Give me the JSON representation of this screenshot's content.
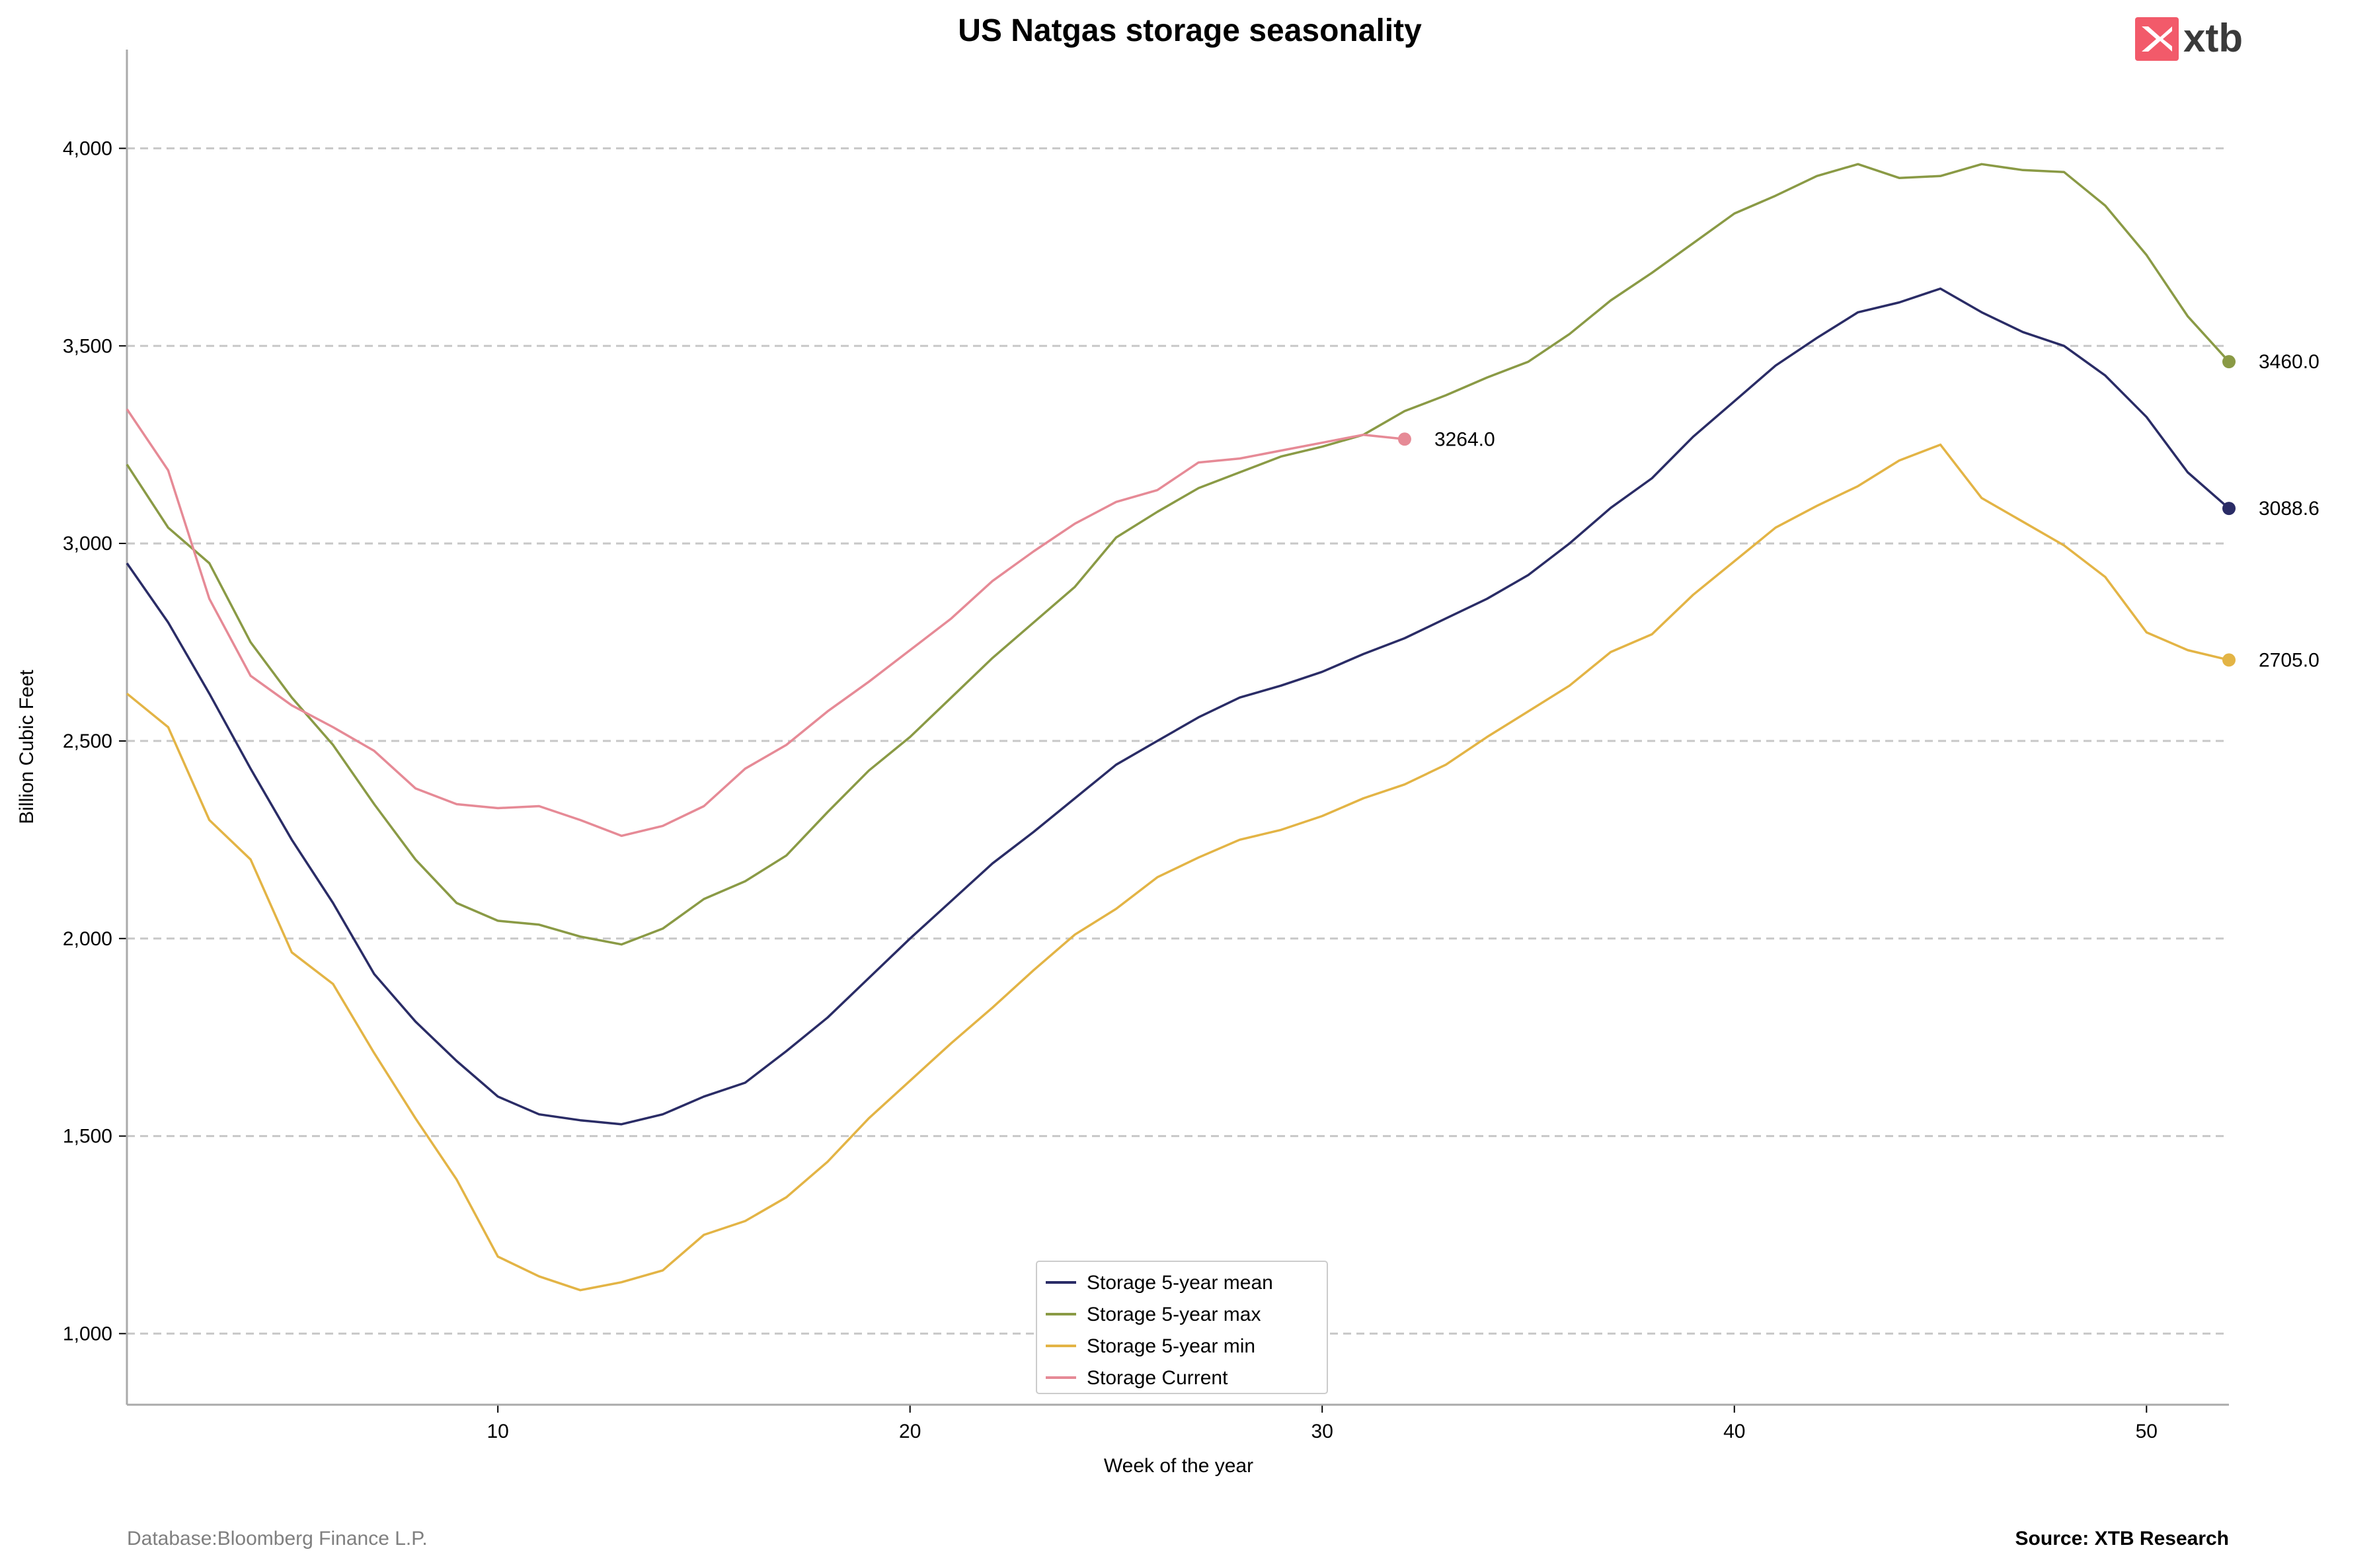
{
  "branding": {
    "logo_text": "xtb",
    "logo_color": "#f25a6a"
  },
  "footer": {
    "left": "Database:Bloomberg Finance L.P.",
    "right": "Source: XTB Research"
  },
  "chart_data": {
    "type": "line",
    "title": "US Natgas storage seasonality",
    "xlabel": "Week of the year",
    "ylabel": "Billion Cubic Feet",
    "xlim": [
      1,
      52
    ],
    "ylim": [
      820,
      4250
    ],
    "xticks": [
      10,
      20,
      30,
      40,
      50
    ],
    "yticks": [
      1000,
      1500,
      2000,
      2500,
      3000,
      3500,
      4000
    ],
    "ytick_labels": [
      "1,000",
      "1,500",
      "2,000",
      "2,500",
      "3,000",
      "3,500",
      "4,000"
    ],
    "grid": "horizontal dashed",
    "legend_position": "bottom-center",
    "series": [
      {
        "name": "Storage 5-year mean",
        "color": "#2a2c66",
        "end_label": "3088.6",
        "x": [
          1,
          2,
          3,
          4,
          5,
          6,
          7,
          8,
          9,
          10,
          11,
          12,
          13,
          14,
          15,
          16,
          17,
          18,
          19,
          20,
          21,
          22,
          23,
          24,
          25,
          26,
          27,
          28,
          29,
          30,
          31,
          32,
          33,
          34,
          35,
          36,
          37,
          38,
          39,
          40,
          41,
          42,
          43,
          44,
          45,
          46,
          47,
          48,
          49,
          50,
          51,
          52
        ],
        "values": [
          2950,
          2800,
          2620,
          2430,
          2250,
          2090,
          1910,
          1790,
          1690,
          1600,
          1555,
          1540,
          1530,
          1555,
          1600,
          1635,
          1715,
          1800,
          1900,
          2000,
          2095,
          2190,
          2270,
          2355,
          2440,
          2500,
          2560,
          2610,
          2640,
          2675,
          2720,
          2760,
          2810,
          2860,
          2920,
          3000,
          3090,
          3165,
          3270,
          3360,
          3450,
          3520,
          3585,
          3610,
          3645,
          3585,
          3535,
          3500,
          3425,
          3320,
          3180,
          3088.6
        ]
      },
      {
        "name": "Storage 5-year max",
        "color": "#8a9a45",
        "end_label": "3460.0",
        "x": [
          1,
          2,
          3,
          4,
          5,
          6,
          7,
          8,
          9,
          10,
          11,
          12,
          13,
          14,
          15,
          16,
          17,
          18,
          19,
          20,
          21,
          22,
          23,
          24,
          25,
          26,
          27,
          28,
          29,
          30,
          31,
          32,
          33,
          34,
          35,
          36,
          37,
          38,
          39,
          40,
          41,
          42,
          43,
          44,
          45,
          46,
          47,
          48,
          49,
          50,
          51,
          52
        ],
        "values": [
          3200,
          3040,
          2950,
          2750,
          2610,
          2490,
          2340,
          2200,
          2090,
          2045,
          2035,
          2005,
          1985,
          2025,
          2100,
          2145,
          2210,
          2320,
          2425,
          2510,
          2610,
          2710,
          2800,
          2890,
          3015,
          3080,
          3140,
          3180,
          3220,
          3245,
          3275,
          3335,
          3375,
          3420,
          3460,
          3530,
          3615,
          3685,
          3760,
          3835,
          3880,
          3930,
          3960,
          3925,
          3930,
          3960,
          3945,
          3940,
          3855,
          3730,
          3575,
          3460
        ]
      },
      {
        "name": "Storage 5-year min",
        "color": "#e3b445",
        "end_label": "2705.0",
        "x": [
          1,
          2,
          3,
          4,
          5,
          6,
          7,
          8,
          9,
          10,
          11,
          12,
          13,
          14,
          15,
          16,
          17,
          18,
          19,
          20,
          21,
          22,
          23,
          24,
          25,
          26,
          27,
          28,
          29,
          30,
          31,
          32,
          33,
          34,
          35,
          36,
          37,
          38,
          39,
          40,
          41,
          42,
          43,
          44,
          45,
          46,
          47,
          48,
          49,
          50,
          51,
          52
        ],
        "values": [
          2620,
          2535,
          2300,
          2200,
          1965,
          1885,
          1710,
          1545,
          1390,
          1195,
          1145,
          1110,
          1130,
          1160,
          1250,
          1285,
          1345,
          1435,
          1545,
          1640,
          1735,
          1825,
          1920,
          2010,
          2075,
          2155,
          2205,
          2250,
          2275,
          2310,
          2355,
          2390,
          2440,
          2510,
          2575,
          2640,
          2725,
          2770,
          2870,
          2955,
          3040,
          3095,
          3145,
          3210,
          3250,
          3115,
          3055,
          2995,
          2915,
          2775,
          2730,
          2705
        ]
      },
      {
        "name": "Storage Current",
        "color": "#e68a96",
        "end_label": "3264.0",
        "x": [
          1,
          2,
          3,
          4,
          5,
          6,
          7,
          8,
          9,
          10,
          11,
          12,
          13,
          14,
          15,
          16,
          17,
          18,
          19,
          20,
          21,
          22,
          23,
          24,
          25,
          26,
          27,
          28,
          29,
          30,
          31,
          32
        ],
        "values": [
          3340,
          3185,
          2860,
          2665,
          2590,
          2535,
          2475,
          2380,
          2340,
          2330,
          2335,
          2300,
          2260,
          2285,
          2335,
          2430,
          2490,
          2575,
          2650,
          2730,
          2810,
          2905,
          2980,
          3050,
          3105,
          3135,
          3205,
          3215,
          3235,
          3255,
          3275,
          3264
        ]
      }
    ]
  }
}
